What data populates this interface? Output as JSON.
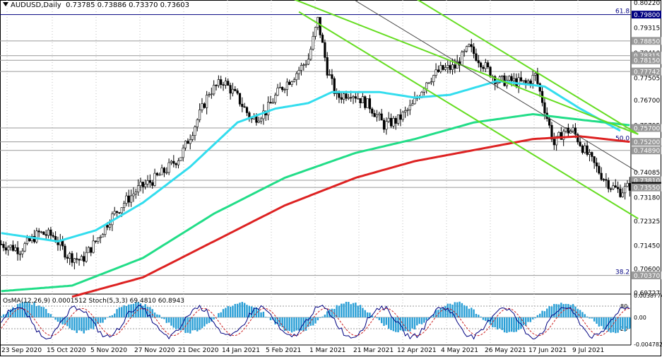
{
  "header": {
    "symbol": "AUDUSD,Daily",
    "ohlc": "0.73785 0.73886 0.73370 0.73603"
  },
  "indicator": {
    "osma_label": "OsMA(12,26,9) 0.0001512",
    "stoch_label": "Stoch(5,3,3) 69.4810 60.8943"
  },
  "chart_data": {
    "type": "candlestick",
    "symbol": "AUDUSD",
    "timeframe": "Daily",
    "ylim": [
      0.6972,
      0.802
    ],
    "price_ticks": [
      "0.80220",
      "0.79315",
      "0.78410",
      "0.77505",
      "0.76700",
      "0.75795",
      "0.74890",
      "0.74085",
      "0.73180",
      "0.72325",
      "0.71450",
      "0.70600",
      "0.69727"
    ],
    "price_labels": [
      {
        "value": 0.798,
        "text": "0.79800",
        "color": "#000080"
      },
      {
        "value": 0.7885,
        "text": "0.78850",
        "color": "#555555"
      },
      {
        "value": 0.78315,
        "text": "0.78315",
        "color": "#555555"
      },
      {
        "value": 0.7815,
        "text": "0.78150",
        "color": "#555555"
      },
      {
        "value": 0.77742,
        "text": "0.77742",
        "color": "#555555"
      },
      {
        "value": 0.757,
        "text": "0.75700",
        "color": "#555555"
      },
      {
        "value": 0.752,
        "text": "0.75200",
        "color": "#555555"
      },
      {
        "value": 0.7489,
        "text": "0.74890",
        "color": "#555555"
      },
      {
        "value": 0.7381,
        "text": "0.73810",
        "color": "#555555"
      },
      {
        "value": 0.73603,
        "text": "0.73603",
        "color": "#000000"
      },
      {
        "value": 0.7355,
        "text": "0.73550",
        "color": "#555555"
      },
      {
        "value": 0.7037,
        "text": "0.70370",
        "color": "#555555"
      }
    ],
    "fib_levels": [
      {
        "label": "61.8",
        "value": 0.798
      },
      {
        "label": "50.0",
        "value": 0.752
      },
      {
        "label": "38.2",
        "value": 0.7037
      }
    ],
    "x_labels": [
      "23 Sep 2020",
      "15 Oct 2020",
      "5 Nov 2020",
      "27 Nov 2020",
      "21 Dec 2020",
      "14 Jan 2021",
      "5 Feb 2021",
      "1 Mar 2021",
      "21 Mar 2021",
      "12 Apr 2021",
      "4 May 2021",
      "26 May 2021",
      "17 Jun 2021",
      "9 Jul 2021"
    ],
    "price_anchors": [
      [
        0,
        0.715
      ],
      [
        8,
        0.713
      ],
      [
        16,
        0.719
      ],
      [
        22,
        0.718
      ],
      [
        28,
        0.711
      ],
      [
        34,
        0.709
      ],
      [
        40,
        0.716
      ],
      [
        46,
        0.724
      ],
      [
        52,
        0.73
      ],
      [
        58,
        0.735
      ],
      [
        64,
        0.738
      ],
      [
        70,
        0.742
      ],
      [
        76,
        0.747
      ],
      [
        82,
        0.758
      ],
      [
        88,
        0.77
      ],
      [
        94,
        0.774
      ],
      [
        100,
        0.768
      ],
      [
        106,
        0.76
      ],
      [
        112,
        0.763
      ],
      [
        118,
        0.771
      ],
      [
        124,
        0.776
      ],
      [
        130,
        0.782
      ],
      [
        134,
        0.796
      ],
      [
        138,
        0.778
      ],
      [
        142,
        0.768
      ],
      [
        148,
        0.77
      ],
      [
        156,
        0.765
      ],
      [
        162,
        0.758
      ],
      [
        168,
        0.76
      ],
      [
        174,
        0.765
      ],
      [
        180,
        0.774
      ],
      [
        186,
        0.778
      ],
      [
        192,
        0.779
      ],
      [
        198,
        0.786
      ],
      [
        204,
        0.78
      ],
      [
        210,
        0.774
      ],
      [
        216,
        0.774
      ],
      [
        222,
        0.773
      ],
      [
        226,
        0.776
      ],
      [
        230,
        0.764
      ],
      [
        234,
        0.751
      ],
      [
        238,
        0.756
      ],
      [
        242,
        0.756
      ],
      [
        246,
        0.75
      ],
      [
        250,
        0.745
      ],
      [
        254,
        0.74
      ],
      [
        258,
        0.736
      ],
      [
        262,
        0.734
      ],
      [
        266,
        0.736
      ]
    ],
    "series": [
      {
        "name": "MA-1",
        "color": "#33ddee",
        "anchors": [
          [
            0,
            0.719
          ],
          [
            24,
            0.716
          ],
          [
            40,
            0.72
          ],
          [
            60,
            0.73
          ],
          [
            80,
            0.743
          ],
          [
            100,
            0.759
          ],
          [
            116,
            0.764
          ],
          [
            130,
            0.766
          ],
          [
            140,
            0.77
          ],
          [
            160,
            0.77
          ],
          [
            175,
            0.768
          ],
          [
            190,
            0.769
          ],
          [
            210,
            0.774
          ],
          [
            230,
            0.772
          ],
          [
            245,
            0.764
          ],
          [
            262,
            0.756
          ]
        ]
      },
      {
        "name": "MA-2",
        "color": "#22dd88",
        "anchors": [
          [
            0,
            0.698
          ],
          [
            30,
            0.7
          ],
          [
            60,
            0.71
          ],
          [
            90,
            0.726
          ],
          [
            120,
            0.739
          ],
          [
            150,
            0.748
          ],
          [
            175,
            0.753
          ],
          [
            200,
            0.759
          ],
          [
            225,
            0.762
          ],
          [
            245,
            0.76
          ],
          [
            266,
            0.758
          ]
        ]
      },
      {
        "name": "MA-3",
        "color": "#dd2222",
        "anchors": [
          [
            30,
            0.696
          ],
          [
            60,
            0.703
          ],
          [
            90,
            0.716
          ],
          [
            120,
            0.729
          ],
          [
            150,
            0.739
          ],
          [
            175,
            0.745
          ],
          [
            200,
            0.749
          ],
          [
            225,
            0.753
          ],
          [
            245,
            0.754
          ],
          [
            266,
            0.752
          ]
        ]
      }
    ],
    "channels": [
      {
        "color": "#66dd22",
        "from": [
          124,
          0.8035
        ],
        "to": [
          266,
          0.756
        ]
      },
      {
        "color": "#66dd22",
        "from": [
          176,
          0.8035
        ],
        "to": [
          266,
          0.756
        ]
      },
      {
        "color": "#66dd22",
        "from": [
          126,
          0.799
        ],
        "to": [
          266,
          0.7255
        ]
      },
      {
        "color": "#444444",
        "from": [
          150,
          0.803
        ],
        "to": [
          266,
          0.741
        ]
      }
    ],
    "indicator_panel": {
      "ylim": [
        -0.0048,
        0.0039
      ],
      "ticks": [
        "0.0038774",
        "0.00",
        "-0.004782"
      ],
      "stoch_levels": [
        "80",
        "20"
      ],
      "osma_color": "#2a9fd6",
      "stoch_main_color": "#000080",
      "stoch_signal_color": "#cc2222"
    }
  }
}
